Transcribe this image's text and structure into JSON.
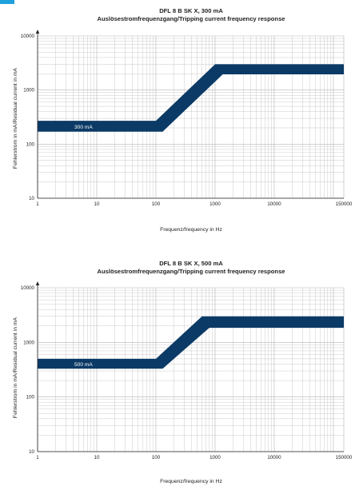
{
  "colors": {
    "band": "#0b3a66",
    "grid": "#b4b4b4",
    "axis": "#222222",
    "accent": "#1ea0dc"
  },
  "chart_data": [
    {
      "type": "area",
      "title": "DFL 8 B SK X, 300 mA",
      "subtitle": "Auslösestromfrequenzgang/Tripping current frequency response",
      "xlabel": "Frequenz/frequency in Hz",
      "ylabel": "Fehlerstrom in mA/Residual current in mA",
      "xscale": "log",
      "yscale": "log",
      "xlim": [
        1,
        150000
      ],
      "ylim": [
        10,
        10000
      ],
      "x_ticks": [
        1,
        10,
        100,
        1000,
        10000,
        150000
      ],
      "x_tick_labels": [
        "1",
        "10",
        "100",
        "1000",
        "10000",
        "150000"
      ],
      "y_ticks": [
        10,
        100,
        1000,
        10000
      ],
      "y_tick_labels": [
        "10",
        "100",
        "1000",
        "10000"
      ],
      "grid": true,
      "band_label": "300 mA",
      "band": {
        "upper": [
          [
            1,
            270
          ],
          [
            100,
            270
          ],
          [
            1000,
            3000
          ],
          [
            150000,
            3000
          ]
        ],
        "lower": [
          [
            1,
            170
          ],
          [
            130,
            170
          ],
          [
            1350,
            1950
          ],
          [
            150000,
            1950
          ]
        ]
      }
    },
    {
      "type": "area",
      "title": "DFL 8 B SK X, 500 mA",
      "subtitle": "Auslösestromfrequenzgang/Tripping current frequency response",
      "xlabel": "Frequenz/frequency in Hz",
      "ylabel": "Fehlerstrom in mA/Residual current in mA",
      "xscale": "log",
      "yscale": "log",
      "xlim": [
        1,
        150000
      ],
      "ylim": [
        10,
        10000
      ],
      "x_ticks": [
        1,
        10,
        100,
        1000,
        10000,
        150000
      ],
      "x_tick_labels": [
        "1",
        "10",
        "100",
        "1000",
        "10000",
        "150000"
      ],
      "y_ticks": [
        10,
        100,
        1000,
        10000
      ],
      "y_tick_labels": [
        "10",
        "100",
        "1000",
        "10000"
      ],
      "grid": true,
      "band_label": "500 mA",
      "band": {
        "upper": [
          [
            1,
            500
          ],
          [
            100,
            500
          ],
          [
            600,
            3000
          ],
          [
            150000,
            3000
          ]
        ],
        "lower": [
          [
            1,
            330
          ],
          [
            130,
            330
          ],
          [
            800,
            1850
          ],
          [
            150000,
            1850
          ]
        ]
      }
    }
  ]
}
